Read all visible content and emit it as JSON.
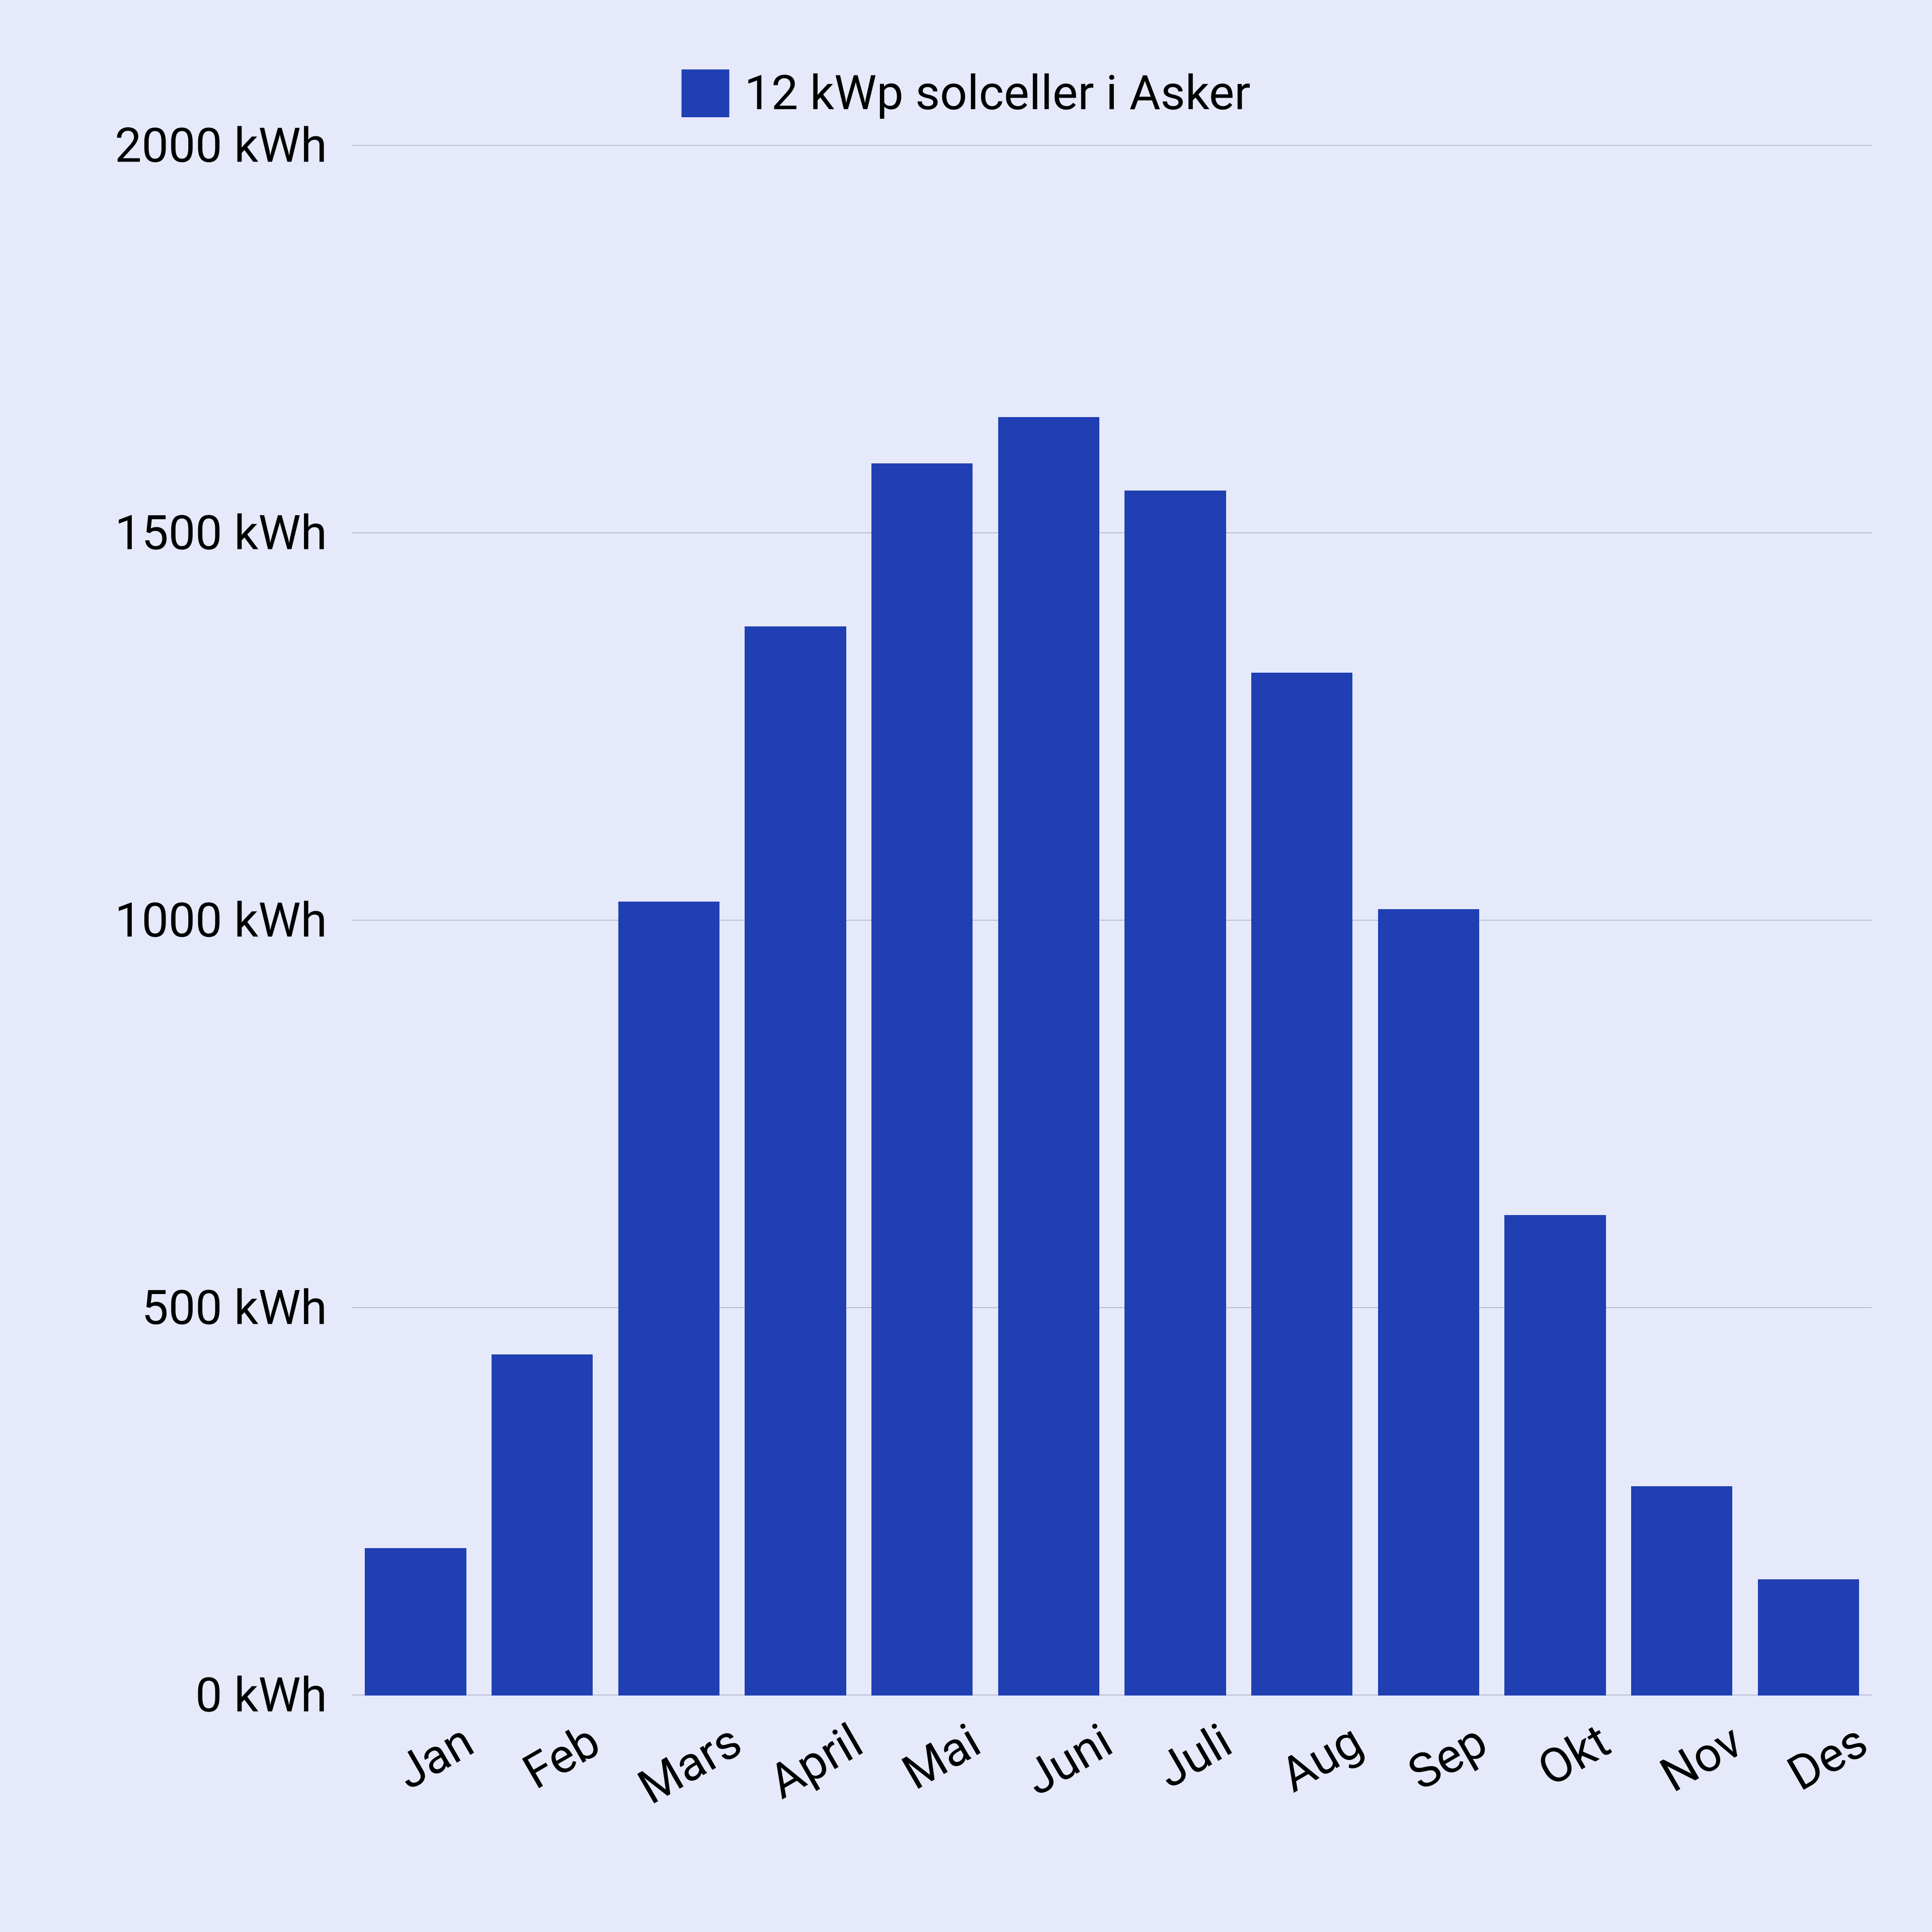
{
  "chart": {
    "type": "bar",
    "background_color": "#e6e9fa",
    "bar_color": "#1f3fb3",
    "grid_color": "#bcbfd1",
    "text_color": "#000000",
    "legend": {
      "label": "12 kWp solceller i Asker",
      "swatch_color": "#1f3fb3",
      "fontsize": 95
    },
    "categories": [
      "Jan",
      "Feb",
      "Mars",
      "April",
      "Mai",
      "Juni",
      "Juli",
      "Aug",
      "Sep",
      "Okt",
      "Nov",
      "Des"
    ],
    "values": [
      190,
      440,
      1025,
      1380,
      1590,
      1650,
      1555,
      1320,
      1015,
      620,
      270,
      150
    ],
    "ylim": [
      0,
      2000
    ],
    "ytick_step": 500,
    "y_unit": "kWh",
    "label_fontsize": 95,
    "bar_width": 0.8,
    "xlabel_rotation": -30
  }
}
